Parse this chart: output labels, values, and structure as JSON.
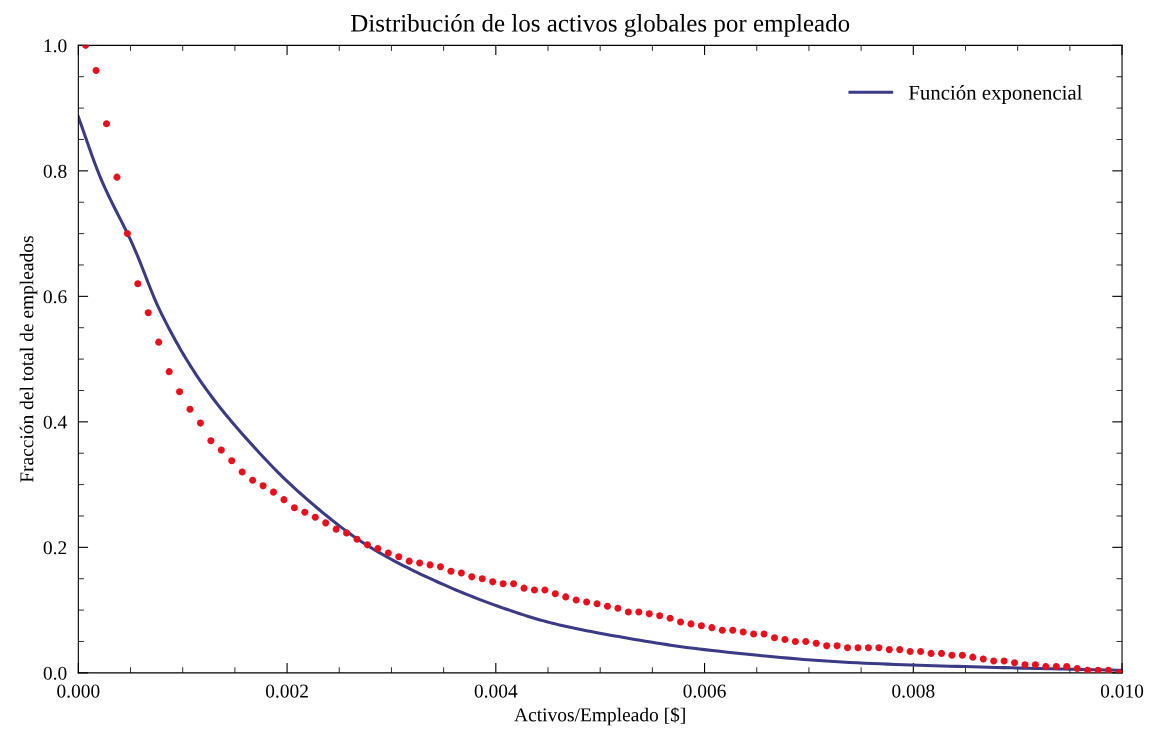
{
  "chart_data": {
    "type": "scatter",
    "title": "Distribución de los activos globales por empleado",
    "xlabel": "Activos/Empleado [$]",
    "ylabel": "Fracción del total de empleados",
    "xlim": [
      0,
      0.01
    ],
    "ylim": [
      0,
      1
    ],
    "xticks": [
      {
        "value": 0,
        "label": "0.000"
      },
      {
        "value": 0.002,
        "label": "0.002"
      },
      {
        "value": 0.004,
        "label": "0.004"
      },
      {
        "value": 0.006,
        "label": "0.006"
      },
      {
        "value": 0.008,
        "label": "0.008"
      },
      {
        "value": 0.01,
        "label": "0.010"
      }
    ],
    "yticks": [
      {
        "value": 0,
        "label": "0.0"
      },
      {
        "value": 0.2,
        "label": "0.2"
      },
      {
        "value": 0.4,
        "label": "0.4"
      },
      {
        "value": 0.6,
        "label": "0.6"
      },
      {
        "value": 0.8,
        "label": "0.8"
      },
      {
        "value": 1,
        "label": "1.0"
      }
    ],
    "grid": false,
    "legend": "top right",
    "marker": "circle",
    "series": [
      {
        "color": "#e8101c",
        "x": [
          7e-05,
          0.00017,
          0.00027,
          0.00037,
          0.00047,
          0.00057,
          0.00067,
          0.00077,
          0.00087,
          0.00097,
          0.00107,
          0.00117,
          0.00127,
          0.00137,
          0.00147,
          0.00157,
          0.00167,
          0.00177,
          0.00187,
          0.00197,
          0.00207,
          0.00217,
          0.00227,
          0.00237,
          0.00247,
          0.00257,
          0.00267,
          0.00277,
          0.00287,
          0.00297,
          0.00307,
          0.00317,
          0.00327,
          0.00337,
          0.00347,
          0.00357,
          0.00367,
          0.00377,
          0.00387,
          0.00397,
          0.00407,
          0.00417,
          0.00427,
          0.00437,
          0.00447,
          0.00457,
          0.00467,
          0.00477,
          0.00487,
          0.00497,
          0.00507,
          0.00517,
          0.00527,
          0.00537,
          0.00547,
          0.00557,
          0.00567,
          0.00577,
          0.00587,
          0.00597,
          0.00607,
          0.00617,
          0.00627,
          0.00637,
          0.00647,
          0.00657,
          0.00667,
          0.00677,
          0.00687,
          0.00697,
          0.00707,
          0.00717,
          0.00727,
          0.00737,
          0.00747,
          0.00757,
          0.00767,
          0.00777,
          0.00787,
          0.00797,
          0.00807,
          0.00817,
          0.00827,
          0.00837,
          0.00847,
          0.00857,
          0.00867,
          0.00877,
          0.00887,
          0.00897,
          0.00907,
          0.00917,
          0.00927,
          0.00937,
          0.00947,
          0.00957,
          0.00967,
          0.00977,
          0.00987,
          0.00997
        ],
        "values": [
          1.0,
          0.96,
          0.875,
          0.79,
          0.7,
          0.62,
          0.574,
          0.527,
          0.48,
          0.448,
          0.42,
          0.398,
          0.37,
          0.355,
          0.338,
          0.32,
          0.307,
          0.298,
          0.288,
          0.276,
          0.263,
          0.256,
          0.248,
          0.239,
          0.229,
          0.223,
          0.213,
          0.204,
          0.198,
          0.191,
          0.185,
          0.178,
          0.175,
          0.172,
          0.169,
          0.162,
          0.159,
          0.153,
          0.15,
          0.145,
          0.142,
          0.142,
          0.135,
          0.132,
          0.132,
          0.126,
          0.121,
          0.116,
          0.113,
          0.11,
          0.106,
          0.103,
          0.097,
          0.097,
          0.094,
          0.091,
          0.087,
          0.081,
          0.078,
          0.075,
          0.072,
          0.068,
          0.068,
          0.065,
          0.062,
          0.062,
          0.056,
          0.053,
          0.05,
          0.05,
          0.047,
          0.043,
          0.043,
          0.04,
          0.04,
          0.04,
          0.04,
          0.037,
          0.037,
          0.034,
          0.034,
          0.031,
          0.031,
          0.028,
          0.028,
          0.025,
          0.022,
          0.019,
          0.019,
          0.016,
          0.013,
          0.013,
          0.01,
          0.01,
          0.01,
          0.007,
          0.004,
          0.004,
          0.004,
          0.0
        ]
      },
      {
        "type": "line",
        "name": "Función exponencial",
        "color": "#3a3a85",
        "line_style": "solid",
        "marker": "none",
        "x": [
          0,
          0.00021,
          0.00053,
          0.00078,
          0.00117,
          0.00171,
          0.00212,
          0.00276,
          0.0034,
          0.00404,
          0.00452,
          0.00497,
          0.006,
          0.00746,
          0.00894,
          0.01
        ],
        "values": [
          0.886,
          0.79,
          0.679,
          0.578,
          0.465,
          0.355,
          0.287,
          0.204,
          0.148,
          0.105,
          0.08,
          0.064,
          0.037,
          0.016,
          0.008,
          0.004
        ]
      }
    ]
  }
}
